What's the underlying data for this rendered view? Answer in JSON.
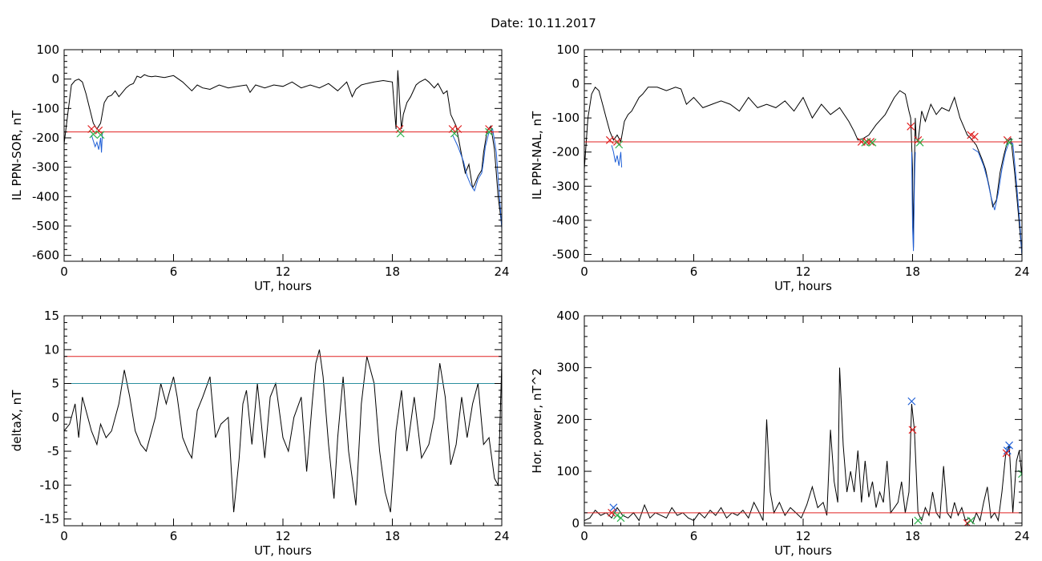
{
  "figure": {
    "title": "Date:  10.11.2017"
  },
  "chart_data": [
    {
      "id": "sor",
      "type": "line",
      "xlabel": "UT, hours",
      "ylabel": "IL PPN-SOR, nT",
      "xlim": [
        0,
        24
      ],
      "ylim": [
        -620,
        100
      ],
      "xticks": [
        0,
        6,
        12,
        18,
        24
      ],
      "yticks": [
        -600,
        -500,
        -400,
        -300,
        -200,
        -100,
        0,
        100
      ],
      "hlines": [
        {
          "y": -180,
          "color": "#e02020"
        }
      ],
      "series": [
        {
          "color": "#000000",
          "x": [
            0,
            0.2,
            0.4,
            0.6,
            0.8,
            1.0,
            1.2,
            1.4,
            1.6,
            1.8,
            2.0,
            2.2,
            2.4,
            2.6,
            2.8,
            3.0,
            3.2,
            3.4,
            3.6,
            3.8,
            4.0,
            4.2,
            4.4,
            4.6,
            4.8,
            5.0,
            5.5,
            6.0,
            6.5,
            7.0,
            7.3,
            7.6,
            8.0,
            8.5,
            9.0,
            9.5,
            10.0,
            10.2,
            10.5,
            11.0,
            11.5,
            12.0,
            12.5,
            13.0,
            13.5,
            14.0,
            14.5,
            15.0,
            15.5,
            15.8,
            16.0,
            16.3,
            16.6,
            17.0,
            17.5,
            18.0,
            18.2,
            18.3,
            18.35,
            18.4,
            18.5,
            18.6,
            18.8,
            19.0,
            19.3,
            19.5,
            19.8,
            20.0,
            20.3,
            20.5,
            20.8,
            21.0,
            21.2
          ],
          "y": [
            -220,
            -120,
            -20,
            -5,
            0,
            -10,
            -50,
            -100,
            -150,
            -170,
            -150,
            -80,
            -60,
            -55,
            -40,
            -60,
            -45,
            -30,
            -20,
            -15,
            10,
            5,
            15,
            10,
            8,
            10,
            5,
            12,
            -10,
            -40,
            -20,
            -30,
            -35,
            -20,
            -30,
            -25,
            -20,
            -45,
            -20,
            -30,
            -20,
            -25,
            -10,
            -30,
            -20,
            -30,
            -15,
            -40,
            -10,
            -60,
            -35,
            -20,
            -15,
            -10,
            -5,
            -10,
            -170,
            30,
            -20,
            -80,
            -170,
            -120,
            -80,
            -60,
            -20,
            -10,
            0,
            -10,
            -30,
            -15,
            -50,
            -40,
            -120
          ]
        },
        {
          "color": "#1f5fd6",
          "x": [
            1.5,
            1.6,
            1.7,
            1.8,
            1.9,
            2.0,
            2.05,
            2.1
          ],
          "y": [
            -190,
            -210,
            -230,
            -215,
            -240,
            -200,
            -250,
            -180
          ]
        },
        {
          "color": "#000000",
          "x": [
            21.2,
            21.5,
            21.8,
            22.0,
            22.2,
            22.4,
            22.5,
            22.7,
            22.9,
            23.0,
            23.2,
            23.4,
            23.6,
            23.8,
            24.0
          ],
          "y": [
            -120,
            -160,
            -260,
            -320,
            -290,
            -370,
            -360,
            -330,
            -310,
            -250,
            -175,
            -160,
            -240,
            -400,
            -500
          ]
        },
        {
          "color": "#1f5fd6",
          "x": [
            21.3,
            21.6,
            21.9,
            22.1,
            22.3,
            22.5,
            22.7,
            22.9,
            23.0,
            23.1,
            23.3,
            23.5,
            23.7,
            23.9,
            24.0
          ],
          "y": [
            -190,
            -230,
            -280,
            -330,
            -360,
            -380,
            -340,
            -320,
            -280,
            -230,
            -180,
            -170,
            -250,
            -420,
            -510
          ]
        }
      ],
      "markers": [
        {
          "type": "x",
          "color": "#e02020",
          "x": [
            1.5,
            1.9,
            18.4,
            21.3,
            21.6,
            23.3
          ],
          "y": [
            -170,
            -175,
            -170,
            -170,
            -170,
            -170
          ]
        },
        {
          "type": "x",
          "color": "#2bb24c",
          "x": [
            1.6,
            2.0,
            18.45,
            21.4,
            23.3
          ],
          "y": [
            -188,
            -190,
            -185,
            -185,
            -180
          ]
        }
      ]
    },
    {
      "id": "nal",
      "type": "line",
      "xlabel": "UT, hours",
      "ylabel": "IL PPN-NAL, nT",
      "xlim": [
        0,
        24
      ],
      "ylim": [
        -520,
        100
      ],
      "xticks": [
        0,
        6,
        12,
        18,
        24
      ],
      "yticks": [
        -500,
        -400,
        -300,
        -200,
        -100,
        0,
        100
      ],
      "hlines": [
        {
          "y": -170,
          "color": "#e02020"
        }
      ],
      "series": [
        {
          "color": "#000000",
          "x": [
            0,
            0.2,
            0.4,
            0.6,
            0.8,
            1.0,
            1.2,
            1.4,
            1.6,
            1.8,
            2.0,
            2.2,
            2.4,
            2.6,
            2.8,
            3.0,
            3.2,
            3.5,
            4.0,
            4.5,
            5.0,
            5.3,
            5.6,
            6.0,
            6.5,
            7.0,
            7.5,
            8.0,
            8.5,
            9.0,
            9.5,
            10.0,
            10.5,
            11.0,
            11.5,
            12.0,
            12.5,
            13.0,
            13.5,
            14.0,
            14.5,
            14.8,
            15.0,
            15.3,
            15.6,
            16.0,
            16.5,
            17.0,
            17.3,
            17.6,
            17.8,
            17.9,
            18.0,
            18.05,
            18.1,
            18.15,
            18.2,
            18.3,
            18.5,
            18.7,
            19.0,
            19.3,
            19.6,
            20.0,
            20.3,
            20.6,
            21.0,
            21.2
          ],
          "y": [
            -250,
            -100,
            -30,
            -10,
            -20,
            -60,
            -100,
            -140,
            -165,
            -150,
            -170,
            -110,
            -90,
            -80,
            -60,
            -40,
            -30,
            -10,
            -10,
            -20,
            -10,
            -15,
            -60,
            -40,
            -70,
            -60,
            -50,
            -60,
            -80,
            -40,
            -70,
            -60,
            -70,
            -50,
            -80,
            -40,
            -100,
            -60,
            -90,
            -70,
            -110,
            -140,
            -165,
            -160,
            -150,
            -120,
            -90,
            -40,
            -20,
            -30,
            -80,
            -100,
            -250,
            -480,
            -250,
            -100,
            -160,
            -170,
            -80,
            -110,
            -60,
            -90,
            -70,
            -80,
            -40,
            -100,
            -150,
            -160
          ]
        },
        {
          "color": "#1f5fd6",
          "x": [
            1.5,
            1.6,
            1.7,
            1.8,
            1.9,
            2.0,
            2.05
          ],
          "y": [
            -180,
            -200,
            -230,
            -210,
            -240,
            -200,
            -245
          ]
        },
        {
          "color": "#1f5fd6",
          "x": [
            17.95,
            18.0,
            18.05,
            18.1,
            18.15
          ],
          "y": [
            -200,
            -420,
            -490,
            -300,
            -200
          ]
        },
        {
          "color": "#000000",
          "x": [
            21.2,
            21.5,
            21.8,
            22.0,
            22.2,
            22.4,
            22.6,
            22.8,
            23.0,
            23.2,
            23.4,
            23.6,
            23.8,
            24.0
          ],
          "y": [
            -160,
            -180,
            -220,
            -250,
            -300,
            -360,
            -340,
            -260,
            -210,
            -170,
            -160,
            -260,
            -380,
            -500
          ]
        },
        {
          "color": "#1f5fd6",
          "x": [
            21.3,
            21.6,
            21.9,
            22.1,
            22.3,
            22.5,
            22.7,
            22.9,
            23.1,
            23.3,
            23.5,
            23.7,
            23.9,
            24.0
          ],
          "y": [
            -190,
            -200,
            -240,
            -280,
            -330,
            -370,
            -320,
            -250,
            -200,
            -170,
            -175,
            -290,
            -420,
            -505
          ]
        }
      ],
      "markers": [
        {
          "type": "x",
          "color": "#e02020",
          "x": [
            1.4,
            1.8,
            15.2,
            15.5,
            15.7,
            17.9,
            18.3,
            21.2,
            21.4,
            23.2
          ],
          "y": [
            -165,
            -170,
            -170,
            -170,
            -170,
            -125,
            -165,
            -150,
            -155,
            -165
          ]
        },
        {
          "type": "x",
          "color": "#2bb24c",
          "x": [
            1.9,
            15.4,
            15.8,
            18.4,
            23.3
          ],
          "y": [
            -178,
            -172,
            -172,
            -172,
            -172
          ]
        }
      ]
    },
    {
      "id": "deltax",
      "type": "line",
      "xlabel": "UT, hours",
      "ylabel": "deltaX, nT",
      "xlim": [
        0,
        24
      ],
      "ylim": [
        -16,
        15
      ],
      "xticks": [
        0,
        6,
        12,
        18,
        24
      ],
      "yticks": [
        -15,
        -10,
        -5,
        0,
        5,
        10,
        15
      ],
      "hlines": [
        {
          "y": 9,
          "color": "#e02020"
        },
        {
          "y": 5,
          "color": "#2b8fa0"
        }
      ],
      "series": [
        {
          "color": "#000000",
          "x": [
            0,
            0.3,
            0.6,
            0.8,
            1.0,
            1.2,
            1.5,
            1.8,
            2.0,
            2.3,
            2.6,
            3.0,
            3.3,
            3.6,
            3.9,
            4.2,
            4.5,
            5.0,
            5.3,
            5.6,
            6.0,
            6.2,
            6.5,
            6.8,
            7.0,
            7.3,
            7.6,
            8.0,
            8.3,
            8.6,
            9.0,
            9.3,
            9.6,
            9.8,
            10.0,
            10.3,
            10.6,
            11.0,
            11.3,
            11.6,
            12.0,
            12.3,
            12.6,
            13.0,
            13.3,
            13.6,
            13.8,
            14.0,
            14.2,
            14.5,
            14.8,
            15.0,
            15.3,
            15.6,
            16.0,
            16.3,
            16.6,
            17.0,
            17.3,
            17.6,
            17.9,
            18.2,
            18.5,
            18.8,
            19.2,
            19.6,
            20.0,
            20.3,
            20.6,
            20.9,
            21.2,
            21.5,
            21.8,
            22.1,
            22.4,
            22.7,
            23.0,
            23.3,
            23.6,
            23.8,
            24.0
          ],
          "y": [
            -2,
            -1,
            2,
            -3,
            3,
            1,
            -2,
            -4,
            -1,
            -3,
            -2,
            2,
            7,
            3,
            -2,
            -4,
            -5,
            0,
            5,
            2,
            6,
            3,
            -3,
            -5,
            -6,
            1,
            3,
            6,
            -3,
            -1,
            0,
            -14,
            -6,
            2,
            4,
            -4,
            5,
            -6,
            3,
            5,
            -3,
            -5,
            0,
            3,
            -8,
            2,
            8,
            10,
            6,
            -4,
            -12,
            -3,
            6,
            -5,
            -13,
            2,
            9,
            5,
            -5,
            -11,
            -14,
            -2,
            4,
            -5,
            3,
            -6,
            -4,
            0,
            8,
            3,
            -7,
            -4,
            3,
            -3,
            2,
            5,
            -4,
            -3,
            -9,
            -10,
            8
          ]
        }
      ],
      "markers": []
    },
    {
      "id": "power",
      "type": "line",
      "xlabel": "UT, hours",
      "ylabel": "Hor. power, nT^2",
      "xlim": [
        0,
        24
      ],
      "ylim": [
        -5,
        400
      ],
      "xticks": [
        0,
        6,
        12,
        18,
        24
      ],
      "yticks": [
        0,
        100,
        200,
        300,
        400
      ],
      "hlines": [
        {
          "y": 20,
          "color": "#e02020"
        }
      ],
      "series": [
        {
          "color": "#000000",
          "x": [
            0,
            0.3,
            0.6,
            0.9,
            1.2,
            1.5,
            1.8,
            2.1,
            2.4,
            2.7,
            3.0,
            3.3,
            3.6,
            3.9,
            4.2,
            4.5,
            4.8,
            5.1,
            5.4,
            5.7,
            6.0,
            6.3,
            6.6,
            6.9,
            7.2,
            7.5,
            7.8,
            8.1,
            8.4,
            8.7,
            9.0,
            9.3,
            9.6,
            9.8,
            10.0,
            10.2,
            10.4,
            10.7,
            11.0,
            11.3,
            11.6,
            11.9,
            12.2,
            12.5,
            12.8,
            13.1,
            13.3,
            13.5,
            13.7,
            13.9,
            14.0,
            14.2,
            14.4,
            14.6,
            14.8,
            15.0,
            15.2,
            15.4,
            15.6,
            15.8,
            16.0,
            16.2,
            16.4,
            16.6,
            16.8,
            17.0,
            17.2,
            17.4,
            17.6,
            17.8,
            17.95,
            18.1,
            18.3,
            18.5,
            18.7,
            18.9,
            19.1,
            19.3,
            19.5,
            19.7,
            19.9,
            20.1,
            20.3,
            20.5,
            20.7,
            20.9,
            21.1,
            21.3,
            21.5,
            21.7,
            21.9,
            22.1,
            22.3,
            22.5,
            22.7,
            22.9,
            23.1,
            23.3,
            23.5,
            23.7,
            23.85,
            24.0
          ],
          "y": [
            5,
            10,
            25,
            15,
            20,
            10,
            30,
            15,
            10,
            20,
            5,
            35,
            10,
            20,
            15,
            10,
            30,
            15,
            20,
            10,
            5,
            20,
            10,
            25,
            15,
            30,
            10,
            20,
            15,
            25,
            10,
            40,
            20,
            5,
            200,
            60,
            20,
            40,
            15,
            30,
            20,
            10,
            35,
            70,
            30,
            40,
            15,
            180,
            80,
            40,
            300,
            150,
            60,
            100,
            60,
            140,
            40,
            120,
            50,
            80,
            30,
            60,
            40,
            120,
            20,
            30,
            40,
            80,
            20,
            60,
            230,
            180,
            20,
            5,
            30,
            15,
            60,
            20,
            10,
            110,
            20,
            10,
            40,
            15,
            30,
            5,
            10,
            0,
            20,
            5,
            40,
            70,
            10,
            20,
            5,
            60,
            130,
            150,
            20,
            120,
            140,
            90
          ]
        }
      ],
      "markers": [
        {
          "type": "x",
          "color": "#1f5fd6",
          "x": [
            1.6,
            17.95,
            23.2,
            23.3
          ],
          "y": [
            30,
            235,
            140,
            150
          ]
        },
        {
          "type": "x",
          "color": "#e02020",
          "x": [
            1.5,
            18.0,
            21.0,
            23.15
          ],
          "y": [
            20,
            180,
            0,
            135
          ]
        },
        {
          "type": "x",
          "color": "#2bb24c",
          "x": [
            1.8,
            2.0,
            18.3,
            21.2,
            24.0
          ],
          "y": [
            15,
            10,
            5,
            5,
            95
          ]
        }
      ]
    }
  ]
}
